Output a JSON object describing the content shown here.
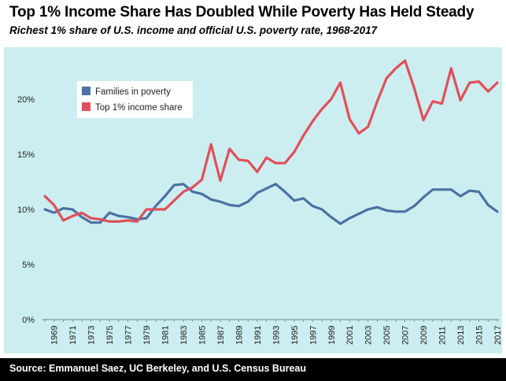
{
  "title": "Top 1% Income Share Has Doubled While Poverty Has Held Steady",
  "subtitle": "Richest 1% share of U.S. income and official U.S. poverty rate, 1968-2017",
  "source": "Source: Emmanuel Saez, UC Berkeley, and U.S. Census Bureau",
  "colors": {
    "background": "#cdeef0",
    "poverty": "#4a72a4",
    "top1": "#e0505a"
  },
  "chart_data": {
    "type": "line",
    "title": "Top 1% Income Share Has Doubled While Poverty Has Held Steady",
    "xlabel": "",
    "ylabel": "",
    "ylim": [
      0,
      24
    ],
    "yticks": [
      0,
      5,
      10,
      15,
      20
    ],
    "ytick_labels": [
      "0%",
      "5%",
      "10%",
      "15%",
      "20%"
    ],
    "xlim": [
      1968,
      2017
    ],
    "xticks": [
      1969,
      1971,
      1973,
      1975,
      1977,
      1979,
      1981,
      1983,
      1985,
      1987,
      1989,
      1991,
      1993,
      1995,
      1997,
      1999,
      2001,
      2003,
      2005,
      2007,
      2009,
      2011,
      2013,
      2015,
      2017
    ],
    "grid": false,
    "legend": "top-left",
    "x": [
      1968,
      1969,
      1970,
      1971,
      1972,
      1973,
      1974,
      1975,
      1976,
      1977,
      1978,
      1979,
      1980,
      1981,
      1982,
      1983,
      1984,
      1985,
      1986,
      1987,
      1988,
      1989,
      1990,
      1991,
      1992,
      1993,
      1994,
      1995,
      1996,
      1997,
      1998,
      1999,
      2000,
      2001,
      2002,
      2003,
      2004,
      2005,
      2006,
      2007,
      2008,
      2009,
      2010,
      2011,
      2012,
      2013,
      2014,
      2015,
      2016,
      2017
    ],
    "series": [
      {
        "name": "Families in poverty",
        "color": "#4a72a4",
        "values": [
          10.0,
          9.7,
          10.1,
          10.0,
          9.3,
          8.8,
          8.8,
          9.7,
          9.4,
          9.3,
          9.1,
          9.2,
          10.3,
          11.2,
          12.2,
          12.3,
          11.6,
          11.4,
          10.9,
          10.7,
          10.4,
          10.3,
          10.7,
          11.5,
          11.9,
          12.3,
          11.6,
          10.8,
          11.0,
          10.3,
          10.0,
          9.3,
          8.7,
          9.2,
          9.6,
          10.0,
          10.2,
          9.9,
          9.8,
          9.8,
          10.3,
          11.1,
          11.8,
          11.8,
          11.8,
          11.2,
          11.7,
          11.6,
          10.4,
          9.8
        ]
      },
      {
        "name": "Top 1% income share",
        "color": "#e0505a",
        "values": [
          11.2,
          10.4,
          9.0,
          9.4,
          9.7,
          9.2,
          9.1,
          8.9,
          8.9,
          9.0,
          8.9,
          10.0,
          10.0,
          10.0,
          10.8,
          11.6,
          12.0,
          12.7,
          15.9,
          12.6,
          15.5,
          14.5,
          14.4,
          13.4,
          14.7,
          14.2,
          14.2,
          15.2,
          16.7,
          18.0,
          19.1,
          20.0,
          21.5,
          18.2,
          16.9,
          17.5,
          19.8,
          21.9,
          22.8,
          23.5,
          21.0,
          18.1,
          19.8,
          19.6,
          22.8,
          19.9,
          21.5,
          21.6,
          20.7,
          21.5
        ]
      }
    ]
  }
}
